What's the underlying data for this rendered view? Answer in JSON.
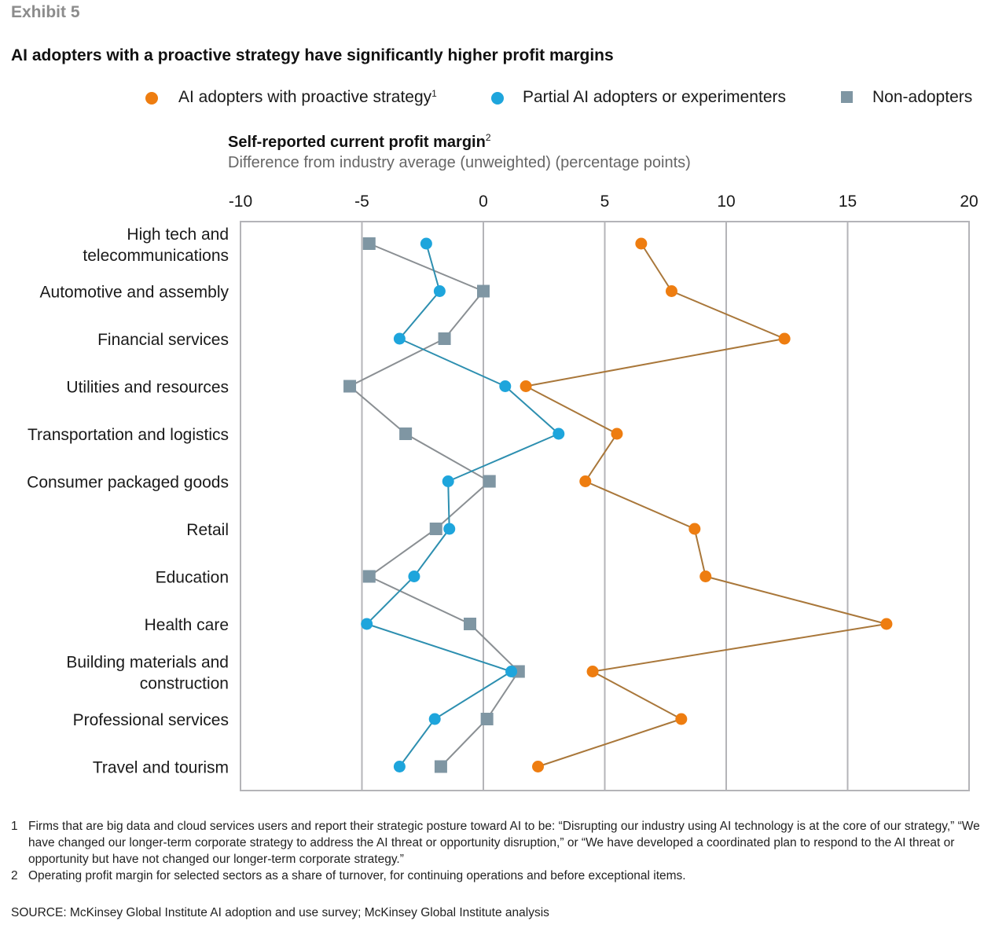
{
  "exhibit_label": "Exhibit 5",
  "title": "AI adopters with a proactive strategy have significantly higher profit margins",
  "legend": [
    {
      "label": "AI adopters with proactive strategy",
      "sup": "1",
      "marker": "circle",
      "color": "#ee7d10"
    },
    {
      "label": "Partial AI adopters or experimenters",
      "sup": "",
      "marker": "circle",
      "color": "#1ea5dc"
    },
    {
      "label": "Non-adopters",
      "sup": "",
      "marker": "square",
      "color": "#7f96a3"
    }
  ],
  "axis_title": "Self-reported current profit margin",
  "axis_title_sup": "2",
  "axis_subtitle": "Difference from industry average (unweighted) (percentage points)",
  "chart_data": {
    "type": "line",
    "orientation": "horizontal-values-vertical-categories",
    "title": "Self-reported current profit margin",
    "xlabel": "Difference from industry average (unweighted) (percentage points)",
    "ylabel": "",
    "xlim": [
      -10,
      20
    ],
    "x_ticks": [
      -10,
      -5,
      0,
      5,
      10,
      15,
      20
    ],
    "x_tick_labels": [
      "-10",
      "-5",
      "0",
      "5",
      "10",
      "15",
      "20"
    ],
    "grid": true,
    "legend_position": "top-right",
    "categories": [
      [
        "High tech and",
        "telecommunications"
      ],
      [
        "Automotive and assembly"
      ],
      [
        "Financial services"
      ],
      [
        "Utilities and resources"
      ],
      [
        "Transportation and logistics"
      ],
      [
        "Consumer packaged goods"
      ],
      [
        "Retail"
      ],
      [
        "Education"
      ],
      [
        "Health care"
      ],
      [
        "Building materials and",
        "construction"
      ],
      [
        "Professional services"
      ],
      [
        "Travel and tourism"
      ]
    ],
    "series": [
      {
        "name": "AI adopters with proactive strategy",
        "marker": "circle",
        "color": "#ee7d10",
        "values": [
          6.5,
          7.75,
          12.4,
          1.75,
          5.5,
          4.2,
          8.7,
          9.15,
          16.6,
          4.5,
          8.15,
          2.25
        ]
      },
      {
        "name": "Partial AI adopters or experimenters",
        "marker": "circle",
        "color": "#1ea5dc",
        "values": [
          -2.35,
          -1.8,
          -3.45,
          0.9,
          3.1,
          -1.45,
          -1.4,
          -2.85,
          -4.8,
          1.15,
          -2.0,
          -3.45
        ]
      },
      {
        "name": "Non-adopters",
        "marker": "square",
        "color": "#7f96a3",
        "values": [
          -4.7,
          0.0,
          -1.6,
          -5.5,
          -3.2,
          0.25,
          -1.95,
          -4.7,
          -0.55,
          1.45,
          0.15,
          -1.75
        ]
      }
    ]
  },
  "footnotes": [
    {
      "num": "1",
      "text": "Firms that are big data and cloud services users and report their strategic posture toward AI to be: “Disrupting our industry using AI technology is at the core of our strategy,” “We have changed our longer-term corporate strategy to address the AI threat or opportunity disruption,” or “We have developed a coordinated plan to respond to the AI threat or opportunity but have not changed our longer-term corporate strategy.”"
    },
    {
      "num": "2",
      "text": "Operating profit margin for selected sectors as a share of turnover, for continuing operations and before exceptional items."
    }
  ],
  "source": "SOURCE:  McKinsey Global Institute AI adoption and use survey; McKinsey Global Institute analysis"
}
